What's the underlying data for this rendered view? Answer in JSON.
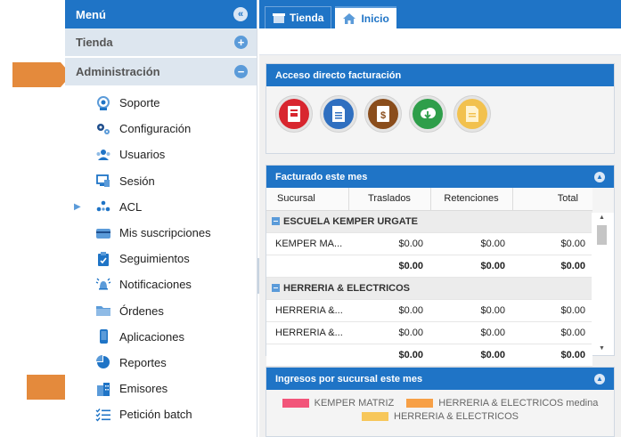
{
  "sidebar": {
    "title": "Menú",
    "sections": {
      "tienda": "Tienda",
      "administracion": "Administración"
    },
    "items": [
      {
        "label": "Soporte",
        "icon": "support-icon"
      },
      {
        "label": "Configuración",
        "icon": "gears-icon"
      },
      {
        "label": "Usuarios",
        "icon": "users-icon"
      },
      {
        "label": "Sesión",
        "icon": "monitor-icon"
      },
      {
        "label": "ACL",
        "icon": "acl-icon"
      },
      {
        "label": "Mis suscripciones",
        "icon": "card-icon"
      },
      {
        "label": "Seguimientos",
        "icon": "clipboard-icon"
      },
      {
        "label": "Notificaciones",
        "icon": "bell-icon"
      },
      {
        "label": "Órdenes",
        "icon": "folder-icon"
      },
      {
        "label": "Aplicaciones",
        "icon": "phone-icon"
      },
      {
        "label": "Reportes",
        "icon": "pie-icon"
      },
      {
        "label": "Emisores",
        "icon": "building-icon"
      },
      {
        "label": "Petición batch",
        "icon": "checklist-icon"
      }
    ]
  },
  "tabs": [
    {
      "label": "Tienda",
      "active": false
    },
    {
      "label": "Inicio",
      "active": true
    }
  ],
  "quick_access": {
    "title": "Acceso directo facturación",
    "buttons": [
      {
        "icon": "invoice-icon",
        "color": "#d8262f"
      },
      {
        "icon": "document-icon",
        "color": "#2f6fc0"
      },
      {
        "icon": "dollar-document-icon",
        "color": "#8a4d1c"
      },
      {
        "icon": "cloud-download-icon",
        "color": "#2e9e4a"
      },
      {
        "icon": "note-icon",
        "color": "#f2c14e"
      }
    ]
  },
  "billed": {
    "title": "Facturado este mes",
    "columns": [
      "Sucursal",
      "Traslados",
      "Retenciones",
      "Total"
    ],
    "groups": [
      {
        "name": "ESCUELA KEMPER URGATE",
        "rows": [
          [
            "KEMPER MA...",
            "$0.00",
            "$0.00",
            "$0.00"
          ]
        ],
        "subtotal": [
          "",
          "$0.00",
          "$0.00",
          "$0.00"
        ]
      },
      {
        "name": "HERRERIA & ELECTRICOS",
        "rows": [
          [
            "HERRERIA &...",
            "$0.00",
            "$0.00",
            "$0.00"
          ],
          [
            "HERRERIA &...",
            "$0.00",
            "$0.00",
            "$0.00"
          ]
        ],
        "subtotal": [
          "",
          "$0.00",
          "$0.00",
          "$0.00"
        ]
      }
    ]
  },
  "income": {
    "title": "Ingresos por sucursal este mes",
    "legend": [
      {
        "label": "KEMPER MATRIZ",
        "color": "#f2557a"
      },
      {
        "label": "HERRERIA & ELECTRICOS medina",
        "color": "#f7a046"
      },
      {
        "label": "HERRERIA & ELECTRICOS",
        "color": "#f7c75a"
      }
    ]
  },
  "colors": {
    "primary": "#1f74c6",
    "highlight_arrow": "#e48a3c"
  }
}
